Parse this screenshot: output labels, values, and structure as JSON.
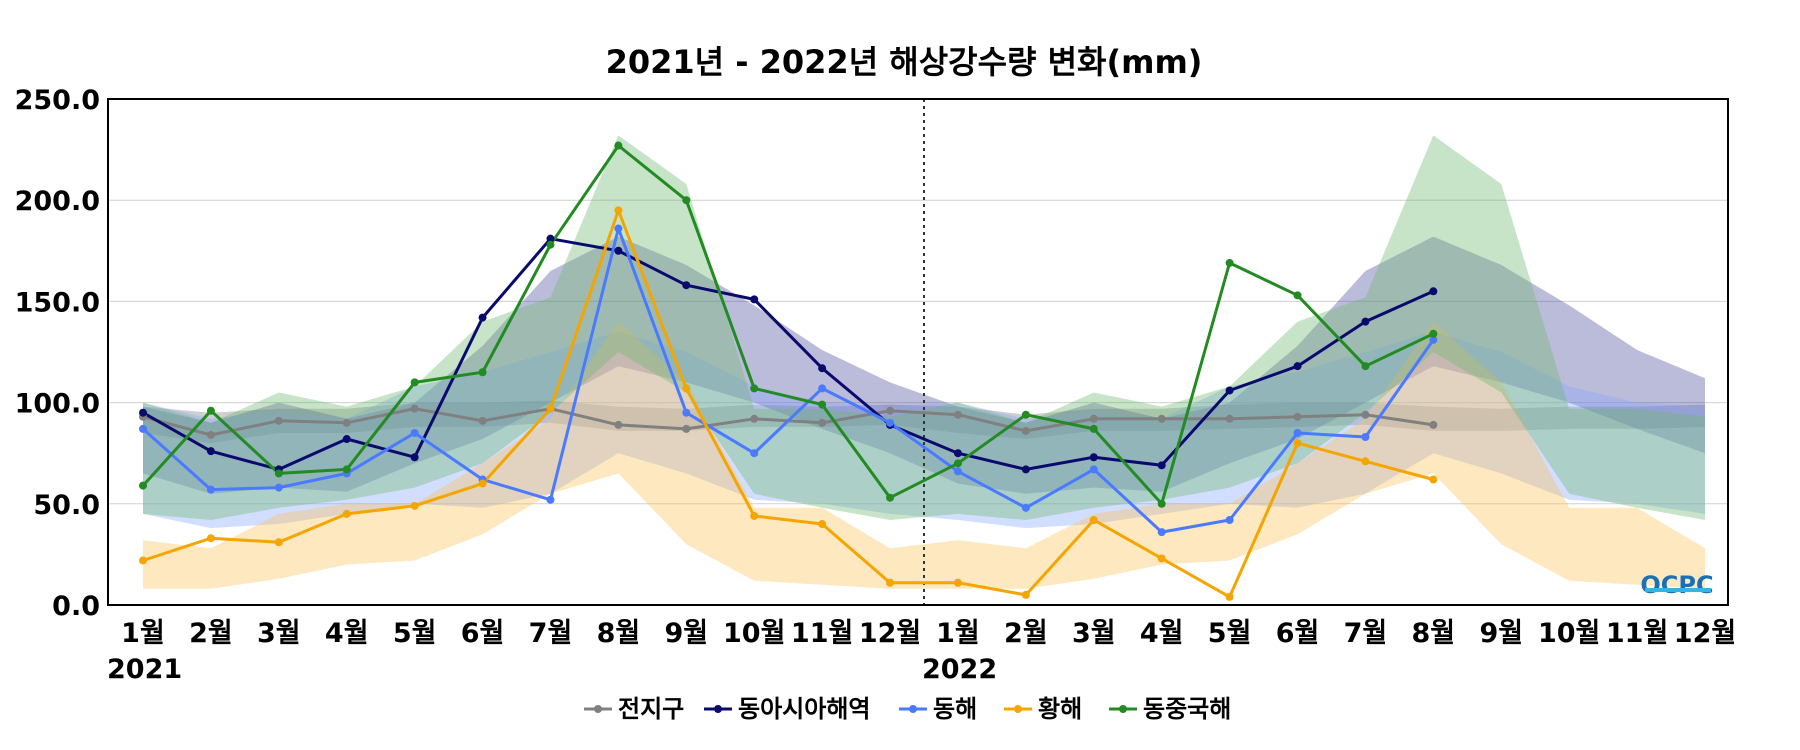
{
  "chart_data": {
    "type": "line",
    "title": "2021년 - 2022년 해상강수량 변화(mm)",
    "xlabel": "",
    "ylabel": "",
    "ylim": [
      0,
      250
    ],
    "y_ticks": [
      "0.0",
      "50.0",
      "100.0",
      "150.0",
      "200.0",
      "250.0"
    ],
    "categories": [
      "1월",
      "2월",
      "3월",
      "4월",
      "5월",
      "6월",
      "7월",
      "8월",
      "9월",
      "10월",
      "11월",
      "12월",
      "1월",
      "2월",
      "3월",
      "4월",
      "5월",
      "6월",
      "7월",
      "8월",
      "9월",
      "10월",
      "11월",
      "12월"
    ],
    "years": [
      {
        "label": "2021",
        "index": 0
      },
      {
        "label": "2022",
        "index": 12
      }
    ],
    "year_divider_after_index": 11.5,
    "grid": true,
    "legend_position": "bottom-center",
    "logo": "OCPC",
    "series": [
      {
        "name": "전지구",
        "color": "#808080",
        "values": [
          93,
          84,
          91,
          90,
          97,
          91,
          97,
          89,
          87,
          92,
          90,
          96,
          94,
          86,
          92,
          92,
          92,
          93,
          94,
          89,
          null,
          null,
          null,
          null
        ],
        "band": {
          "color": "#808080",
          "lower": [
            85,
            80,
            85,
            85,
            88,
            88,
            90,
            86,
            86,
            88,
            88,
            89,
            85,
            82,
            86,
            86,
            87,
            88,
            89,
            86,
            86,
            87,
            87,
            88
          ],
          "upper": [
            98,
            95,
            97,
            97,
            100,
            100,
            101,
            98,
            97,
            99,
            98,
            99,
            98,
            94,
            97,
            97,
            99,
            100,
            100,
            98,
            97,
            98,
            98,
            99
          ]
        }
      },
      {
        "name": "동아시아해역",
        "color": "#0a0a6e",
        "values": [
          95,
          76,
          67,
          82,
          73,
          142,
          181,
          175,
          158,
          151,
          117,
          89,
          75,
          67,
          73,
          69,
          106,
          118,
          140,
          155,
          null,
          null,
          null,
          null
        ],
        "band": {
          "color": "#4b4b9e",
          "lower": [
            65,
            55,
            58,
            56,
            70,
            82,
            100,
            118,
            110,
            100,
            87,
            75,
            60,
            55,
            58,
            56,
            70,
            82,
            100,
            118,
            110,
            100,
            87,
            75
          ],
          "upper": [
            98,
            90,
            100,
            92,
            100,
            128,
            165,
            182,
            168,
            148,
            126,
            110,
            98,
            90,
            100,
            92,
            100,
            128,
            165,
            182,
            168,
            148,
            126,
            112
          ]
        }
      },
      {
        "name": "동해",
        "color": "#4a7aff",
        "values": [
          87,
          57,
          58,
          65,
          85,
          62,
          52,
          186,
          95,
          75,
          107,
          90,
          66,
          48,
          67,
          36,
          42,
          85,
          83,
          131,
          null,
          null,
          null,
          null
        ],
        "band": {
          "color": "#8aa8ff",
          "lower": [
            45,
            38,
            40,
            45,
            50,
            48,
            55,
            75,
            65,
            52,
            50,
            45,
            42,
            38,
            40,
            45,
            50,
            48,
            55,
            75,
            65,
            52,
            50,
            45
          ],
          "upper": [
            100,
            92,
            96,
            92,
            108,
            115,
            125,
            135,
            125,
            108,
            100,
            98,
            100,
            92,
            96,
            92,
            108,
            115,
            125,
            135,
            125,
            108,
            100,
            98
          ]
        }
      },
      {
        "name": "황해",
        "color": "#f5a500",
        "values": [
          22,
          33,
          31,
          45,
          49,
          60,
          97,
          195,
          107,
          44,
          40,
          11,
          11,
          5,
          42,
          23,
          4,
          80,
          71,
          62,
          null,
          null,
          null,
          null
        ],
        "band": {
          "color": "#fbc25a",
          "lower": [
            8,
            8,
            13,
            20,
            22,
            35,
            55,
            65,
            30,
            12,
            10,
            8,
            8,
            8,
            13,
            20,
            22,
            35,
            55,
            65,
            30,
            12,
            10,
            8
          ],
          "upper": [
            32,
            28,
            45,
            50,
            50,
            70,
            92,
            140,
            110,
            48,
            48,
            28,
            32,
            28,
            45,
            50,
            50,
            70,
            92,
            140,
            110,
            48,
            48,
            28
          ]
        }
      },
      {
        "name": "동중국해",
        "color": "#228b22",
        "values": [
          59,
          96,
          65,
          67,
          110,
          115,
          178,
          227,
          200,
          107,
          99,
          53,
          70,
          94,
          87,
          50,
          169,
          153,
          118,
          134,
          null,
          null,
          null,
          null
        ],
        "band": {
          "color": "#6fb86f",
          "lower": [
            45,
            42,
            48,
            52,
            58,
            70,
            95,
            125,
            105,
            55,
            48,
            42,
            45,
            42,
            48,
            52,
            58,
            70,
            95,
            125,
            105,
            55,
            48,
            42
          ],
          "upper": [
            100,
            90,
            105,
            98,
            108,
            140,
            152,
            232,
            208,
            97,
            97,
            93,
            100,
            90,
            105,
            98,
            108,
            140,
            152,
            232,
            208,
            97,
            97,
            93
          ]
        }
      }
    ]
  }
}
